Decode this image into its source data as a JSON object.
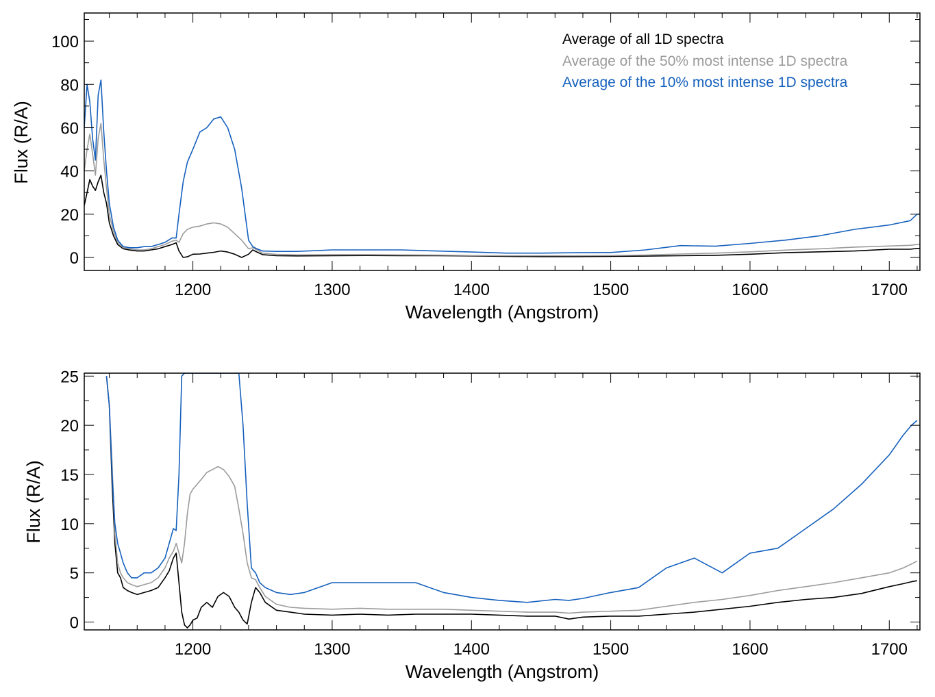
{
  "colors": {
    "all": "#000000",
    "top50": "#9b9b9b",
    "top10": "#1560bd"
  },
  "chart_data": [
    {
      "type": "line",
      "xlabel": "Wavelength (Angstrom)",
      "ylabel": "Flux (R/A)",
      "xlim": [
        1122,
        1722
      ],
      "ylim": [
        -6,
        113
      ],
      "xticks": [
        1200,
        1300,
        1400,
        1500,
        1600,
        1700
      ],
      "yticks": [
        0,
        20,
        40,
        60,
        80,
        100
      ],
      "legend": {
        "placement": "top-right",
        "entries": [
          "Average of all 1D spectra",
          "Average of the 50% most intense 1D spectra",
          "Average of the 10% most intense 1D spectra"
        ]
      },
      "series": [
        {
          "name": "Average of all 1D spectra",
          "color_key": "all",
          "x": [
            1122,
            1124,
            1126,
            1128,
            1130,
            1132,
            1134,
            1136,
            1138,
            1140,
            1143,
            1146,
            1150,
            1155,
            1160,
            1165,
            1170,
            1175,
            1180,
            1185,
            1188,
            1190,
            1193,
            1196,
            1200,
            1205,
            1210,
            1215,
            1220,
            1225,
            1230,
            1235,
            1240,
            1243,
            1246,
            1250,
            1260,
            1275,
            1300,
            1325,
            1350,
            1375,
            1400,
            1425,
            1450,
            1475,
            1500,
            1525,
            1550,
            1575,
            1600,
            1625,
            1650,
            1675,
            1700,
            1715,
            1720,
            1722
          ],
          "y": [
            24,
            30,
            36,
            33,
            31,
            35,
            38,
            30,
            25,
            16,
            10,
            6,
            4,
            3.4,
            3,
            3,
            3.5,
            4,
            5,
            6,
            6.8,
            3,
            0,
            0.3,
            1.5,
            1.6,
            2,
            2.4,
            3,
            2.5,
            1.5,
            0,
            1.5,
            3.5,
            2.5,
            1.3,
            0.8,
            0.7,
            0.8,
            0.9,
            0.8,
            0.8,
            0.7,
            0.5,
            0.4,
            0.4,
            0.5,
            0.6,
            0.8,
            1.0,
            1.5,
            2.2,
            2.6,
            3.0,
            3.8,
            3.8,
            4.2,
            4.2
          ]
        },
        {
          "name": "Average of the 50% most intense 1D spectra",
          "color_key": "top50",
          "x": [
            1122,
            1124,
            1126,
            1128,
            1130,
            1132,
            1134,
            1136,
            1138,
            1140,
            1143,
            1146,
            1150,
            1155,
            1160,
            1165,
            1170,
            1175,
            1180,
            1185,
            1188,
            1190,
            1193,
            1196,
            1200,
            1205,
            1210,
            1215,
            1220,
            1225,
            1230,
            1235,
            1240,
            1243,
            1246,
            1250,
            1260,
            1275,
            1300,
            1325,
            1350,
            1375,
            1400,
            1425,
            1450,
            1475,
            1500,
            1525,
            1550,
            1575,
            1600,
            1625,
            1650,
            1675,
            1700,
            1715,
            1720,
            1722
          ],
          "y": [
            40,
            50,
            57,
            48,
            38,
            55,
            62,
            45,
            32,
            20,
            12,
            7,
            4.5,
            4,
            3.5,
            3.5,
            4,
            5,
            6,
            7.5,
            8,
            7,
            11,
            13,
            14,
            14.5,
            15.5,
            16,
            15.5,
            14,
            11,
            8,
            4,
            4.5,
            3.5,
            2,
            1.4,
            1.2,
            1.3,
            1.3,
            1.2,
            1.1,
            0.9,
            0.8,
            0.8,
            0.8,
            0.9,
            1.1,
            1.6,
            2.0,
            2.6,
            3.4,
            4.0,
            4.8,
            5.3,
            5.6,
            6.0,
            6.0
          ]
        },
        {
          "name": "Average of the 10% most intense 1D spectra",
          "color_key": "top10",
          "x": [
            1122,
            1124,
            1126,
            1128,
            1130,
            1132,
            1134,
            1136,
            1138,
            1140,
            1143,
            1146,
            1150,
            1155,
            1160,
            1165,
            1170,
            1175,
            1180,
            1185,
            1188,
            1190,
            1193,
            1196,
            1200,
            1205,
            1210,
            1215,
            1220,
            1225,
            1230,
            1235,
            1240,
            1243,
            1246,
            1250,
            1260,
            1275,
            1300,
            1325,
            1350,
            1375,
            1400,
            1425,
            1450,
            1475,
            1500,
            1525,
            1550,
            1575,
            1600,
            1625,
            1650,
            1675,
            1700,
            1715,
            1720,
            1722
          ],
          "y": [
            60,
            80,
            72,
            55,
            45,
            75,
            82,
            58,
            40,
            25,
            14,
            8,
            5,
            4.5,
            4.5,
            5,
            5,
            6,
            7,
            9,
            9,
            20,
            35,
            44,
            50,
            58,
            60,
            64,
            65,
            60,
            50,
            32,
            8,
            5,
            4,
            3,
            2.8,
            2.8,
            3.5,
            3.5,
            3.5,
            3.0,
            2.5,
            2.0,
            2.0,
            2.2,
            2.3,
            3.5,
            5.5,
            5.2,
            6.5,
            8.0,
            10.0,
            13.0,
            15.0,
            17.0,
            20.0,
            20.0
          ]
        }
      ]
    },
    {
      "type": "line",
      "xlabel": "Wavelength (Angstrom)",
      "ylabel": "Flux (R/A)",
      "xlim": [
        1122,
        1722
      ],
      "ylim": [
        -0.8,
        25.3
      ],
      "xticks": [
        1200,
        1300,
        1400,
        1500,
        1600,
        1700
      ],
      "yticks": [
        0,
        5,
        10,
        15,
        20,
        25
      ],
      "series": [
        {
          "name": "Average of all 1D spectra",
          "color_key": "all",
          "x": [
            1138,
            1140,
            1142,
            1144,
            1146,
            1148,
            1150,
            1153,
            1156,
            1160,
            1165,
            1170,
            1175,
            1180,
            1183,
            1186,
            1188,
            1190,
            1192,
            1194,
            1196,
            1198,
            1200,
            1203,
            1206,
            1210,
            1214,
            1218,
            1222,
            1226,
            1230,
            1233,
            1236,
            1239,
            1242,
            1245,
            1248,
            1252,
            1260,
            1270,
            1280,
            1300,
            1320,
            1340,
            1360,
            1380,
            1400,
            1420,
            1440,
            1460,
            1470,
            1480,
            1500,
            1520,
            1540,
            1560,
            1580,
            1600,
            1620,
            1640,
            1660,
            1680,
            1700,
            1710,
            1716,
            1720
          ],
          "y": [
            25,
            22,
            14,
            8,
            5,
            4.5,
            3.5,
            3.2,
            3,
            2.8,
            3,
            3.2,
            3.5,
            4.5,
            5.2,
            6.5,
            7,
            4,
            1,
            -0.3,
            -0.6,
            -0.3,
            0.2,
            0.4,
            1.5,
            2,
            1.5,
            2.6,
            3,
            2.6,
            1.5,
            1.0,
            0.2,
            -0.2,
            2,
            3.5,
            3,
            2,
            1.2,
            1.0,
            0.8,
            0.7,
            0.8,
            0.7,
            0.8,
            0.8,
            0.8,
            0.7,
            0.6,
            0.6,
            0.3,
            0.5,
            0.6,
            0.6,
            0.8,
            1.0,
            1.3,
            1.6,
            2.0,
            2.3,
            2.5,
            2.9,
            3.6,
            3.9,
            4.1,
            4.2
          ]
        },
        {
          "name": "Average of the 50% most intense 1D spectra",
          "color_key": "top50",
          "x": [
            1138,
            1140,
            1142,
            1144,
            1146,
            1148,
            1150,
            1153,
            1156,
            1160,
            1165,
            1170,
            1175,
            1180,
            1183,
            1186,
            1188,
            1190,
            1192,
            1194,
            1196,
            1198,
            1200,
            1203,
            1206,
            1210,
            1214,
            1218,
            1222,
            1226,
            1230,
            1233,
            1236,
            1239,
            1242,
            1245,
            1248,
            1252,
            1260,
            1270,
            1280,
            1300,
            1320,
            1340,
            1360,
            1380,
            1400,
            1420,
            1440,
            1460,
            1470,
            1480,
            1500,
            1520,
            1540,
            1560,
            1580,
            1600,
            1620,
            1640,
            1660,
            1680,
            1700,
            1710,
            1716,
            1720
          ],
          "y": [
            25,
            22,
            16,
            9,
            6,
            5,
            4.5,
            4,
            3.8,
            3.6,
            3.8,
            4,
            4.5,
            5.5,
            6.5,
            7.2,
            8,
            7,
            6,
            8,
            11,
            13,
            13.5,
            14,
            14.5,
            15.2,
            15.5,
            15.8,
            15.5,
            14.8,
            13.8,
            11.5,
            9,
            6,
            4.5,
            4.3,
            3.5,
            2.6,
            1.8,
            1.5,
            1.4,
            1.3,
            1.4,
            1.3,
            1.3,
            1.3,
            1.2,
            1.1,
            1.0,
            1.0,
            0.9,
            1.0,
            1.1,
            1.2,
            1.6,
            2.0,
            2.3,
            2.7,
            3.2,
            3.6,
            4.0,
            4.5,
            5.0,
            5.5,
            5.9,
            6.2
          ]
        },
        {
          "name": "Average of the 10% most intense 1D spectra",
          "color_key": "top10",
          "x": [
            1138,
            1140,
            1142,
            1144,
            1146,
            1148,
            1150,
            1153,
            1156,
            1160,
            1165,
            1170,
            1175,
            1180,
            1183,
            1186,
            1188,
            1190,
            1192,
            1194,
            1196,
            1198,
            1200,
            1203,
            1206,
            1210,
            1214,
            1218,
            1222,
            1226,
            1230,
            1233,
            1236,
            1239,
            1242,
            1245,
            1248,
            1252,
            1260,
            1270,
            1280,
            1300,
            1320,
            1340,
            1360,
            1380,
            1400,
            1420,
            1440,
            1460,
            1470,
            1480,
            1500,
            1520,
            1540,
            1560,
            1580,
            1600,
            1620,
            1640,
            1660,
            1680,
            1700,
            1710,
            1716,
            1720
          ],
          "y": [
            25,
            22,
            15,
            10,
            8,
            7,
            6,
            5,
            4.5,
            4.5,
            5,
            5,
            5.5,
            6.5,
            8,
            9.5,
            9.3,
            15,
            25,
            25.3,
            25.3,
            25.3,
            25.3,
            25.3,
            25.3,
            25.3,
            25.3,
            25.3,
            25.3,
            25.3,
            25.3,
            25.3,
            20,
            12,
            5.5,
            5,
            4,
            3.5,
            3,
            2.8,
            3,
            4,
            4,
            4,
            4,
            3,
            2.5,
            2.2,
            2,
            2.3,
            2.2,
            2.4,
            3,
            3.5,
            5.5,
            6.5,
            5,
            7,
            7.5,
            9.5,
            11.5,
            14,
            17,
            19,
            20,
            20.5
          ]
        }
      ]
    }
  ]
}
